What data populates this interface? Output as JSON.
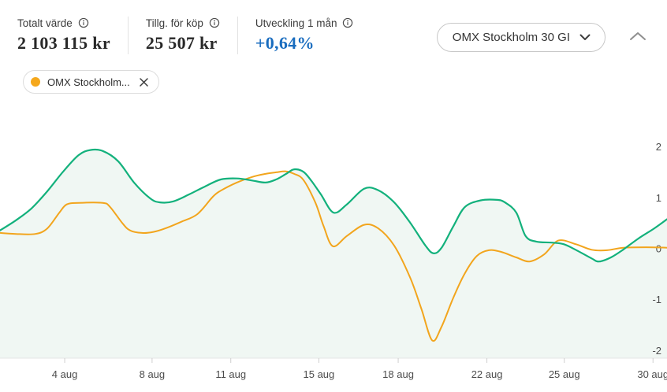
{
  "header": {
    "stats": [
      {
        "label": "Totalt värde",
        "value": "2 103 115 kr"
      },
      {
        "label": "Tillg. för köp",
        "value": "25 507 kr"
      },
      {
        "label": "Utveckling 1 mån",
        "value": "+0,64%"
      }
    ],
    "index_selector": {
      "label": "OMX Stockholm 30 GI"
    }
  },
  "comparison_chip": {
    "label": "OMX Stockholm...",
    "dot_color": "#f5a81c"
  },
  "colors": {
    "accent_blue": "#1a6dbf",
    "development_green": "#13b17c",
    "benchmark_orange": "#f2a51d",
    "area_fill": "#f0f7f3",
    "axis_line": "#e4e4e4",
    "tick_mark": "#cfcfcf"
  },
  "chart_data": {
    "type": "line",
    "title": "Utveckling 1 mån",
    "xlabel": "",
    "ylabel": "%",
    "ylim": [
      -2,
      2
    ],
    "grid": false,
    "legend_position": "chip-top-left",
    "y_ticks": [
      {
        "value": 2,
        "label": "2"
      },
      {
        "value": 1,
        "label": "1"
      },
      {
        "value": 0,
        "label": "0"
      },
      {
        "value": -1,
        "label": "-1"
      },
      {
        "value": -2,
        "label": "-2"
      }
    ],
    "x_ticks": [
      {
        "label": "4 aug",
        "pos": 9.7
      },
      {
        "label": "8 aug",
        "pos": 22.8
      },
      {
        "label": "11 aug",
        "pos": 34.6
      },
      {
        "label": "15 aug",
        "pos": 47.8
      },
      {
        "label": "18 aug",
        "pos": 59.7
      },
      {
        "label": "22 aug",
        "pos": 73.0
      },
      {
        "label": "25 aug",
        "pos": 84.6
      },
      {
        "label": "30 aug",
        "pos": 97.9
      }
    ],
    "series": [
      {
        "name": "utveckling",
        "color": "#13b17c",
        "area_fill": "#f0f7f3",
        "end_value_pct": 0.64,
        "points": [
          [
            0,
            0.36
          ],
          [
            2.4,
            0.56
          ],
          [
            4.7,
            0.79
          ],
          [
            7.1,
            1.13
          ],
          [
            9.5,
            1.52
          ],
          [
            11.8,
            1.84
          ],
          [
            13.6,
            1.94
          ],
          [
            15.4,
            1.92
          ],
          [
            17.7,
            1.72
          ],
          [
            20.1,
            1.3
          ],
          [
            22.5,
            0.99
          ],
          [
            24.0,
            0.91
          ],
          [
            26.0,
            0.93
          ],
          [
            28.4,
            1.07
          ],
          [
            30.7,
            1.22
          ],
          [
            33.1,
            1.36
          ],
          [
            35.5,
            1.38
          ],
          [
            37.8,
            1.34
          ],
          [
            39.8,
            1.3
          ],
          [
            41.4,
            1.36
          ],
          [
            42.9,
            1.47
          ],
          [
            44.1,
            1.56
          ],
          [
            45.5,
            1.51
          ],
          [
            46.7,
            1.33
          ],
          [
            48.1,
            1.07
          ],
          [
            50.0,
            0.71
          ],
          [
            52.0,
            0.87
          ],
          [
            54.6,
            1.18
          ],
          [
            56.7,
            1.15
          ],
          [
            59.1,
            0.91
          ],
          [
            61.5,
            0.51
          ],
          [
            63.8,
            0.06
          ],
          [
            65.0,
            -0.09
          ],
          [
            66.2,
            0.02
          ],
          [
            68.0,
            0.45
          ],
          [
            69.7,
            0.82
          ],
          [
            72.1,
            0.95
          ],
          [
            74.5,
            0.96
          ],
          [
            75.7,
            0.91
          ],
          [
            77.4,
            0.71
          ],
          [
            78.8,
            0.25
          ],
          [
            80.4,
            0.14
          ],
          [
            82.7,
            0.12
          ],
          [
            84.5,
            0.09
          ],
          [
            86.3,
            -0.02
          ],
          [
            88.7,
            -0.19
          ],
          [
            89.8,
            -0.25
          ],
          [
            91.6,
            -0.17
          ],
          [
            93.4,
            -0.02
          ],
          [
            95.7,
            0.2
          ],
          [
            98.1,
            0.4
          ],
          [
            100,
            0.58
          ]
        ]
      },
      {
        "name": "OMX Stockholm 30 GI",
        "color": "#f2a51d",
        "area_fill": null,
        "end_value_pct": 0.02,
        "points": [
          [
            0,
            0.31
          ],
          [
            2.4,
            0.29
          ],
          [
            5.3,
            0.29
          ],
          [
            7.1,
            0.4
          ],
          [
            8.9,
            0.71
          ],
          [
            10.0,
            0.87
          ],
          [
            11.8,
            0.9
          ],
          [
            15.4,
            0.9
          ],
          [
            16.5,
            0.82
          ],
          [
            18.3,
            0.51
          ],
          [
            19.5,
            0.36
          ],
          [
            21.3,
            0.31
          ],
          [
            23.0,
            0.33
          ],
          [
            24.8,
            0.4
          ],
          [
            27.2,
            0.53
          ],
          [
            29.6,
            0.68
          ],
          [
            31.9,
            1.02
          ],
          [
            33.1,
            1.14
          ],
          [
            35.5,
            1.3
          ],
          [
            37.8,
            1.41
          ],
          [
            39.8,
            1.47
          ],
          [
            41.4,
            1.5
          ],
          [
            42.9,
            1.52
          ],
          [
            44.1,
            1.47
          ],
          [
            45.5,
            1.35
          ],
          [
            47.3,
            0.9
          ],
          [
            48.5,
            0.45
          ],
          [
            49.9,
            0.05
          ],
          [
            52.0,
            0.25
          ],
          [
            54.6,
            0.47
          ],
          [
            56.7,
            0.4
          ],
          [
            59.1,
            0.06
          ],
          [
            61.5,
            -0.57
          ],
          [
            63.2,
            -1.19
          ],
          [
            64.8,
            -1.8
          ],
          [
            66.2,
            -1.53
          ],
          [
            68.0,
            -0.95
          ],
          [
            69.7,
            -0.48
          ],
          [
            71.5,
            -0.14
          ],
          [
            73.3,
            -0.03
          ],
          [
            75.1,
            -0.06
          ],
          [
            77.4,
            -0.17
          ],
          [
            79.4,
            -0.25
          ],
          [
            81.6,
            -0.11
          ],
          [
            83.7,
            0.16
          ],
          [
            86.3,
            0.09
          ],
          [
            88.7,
            -0.02
          ],
          [
            91.0,
            -0.03
          ],
          [
            93.4,
            0.02
          ],
          [
            96.9,
            0.03
          ],
          [
            100,
            0.02
          ]
        ]
      }
    ]
  }
}
